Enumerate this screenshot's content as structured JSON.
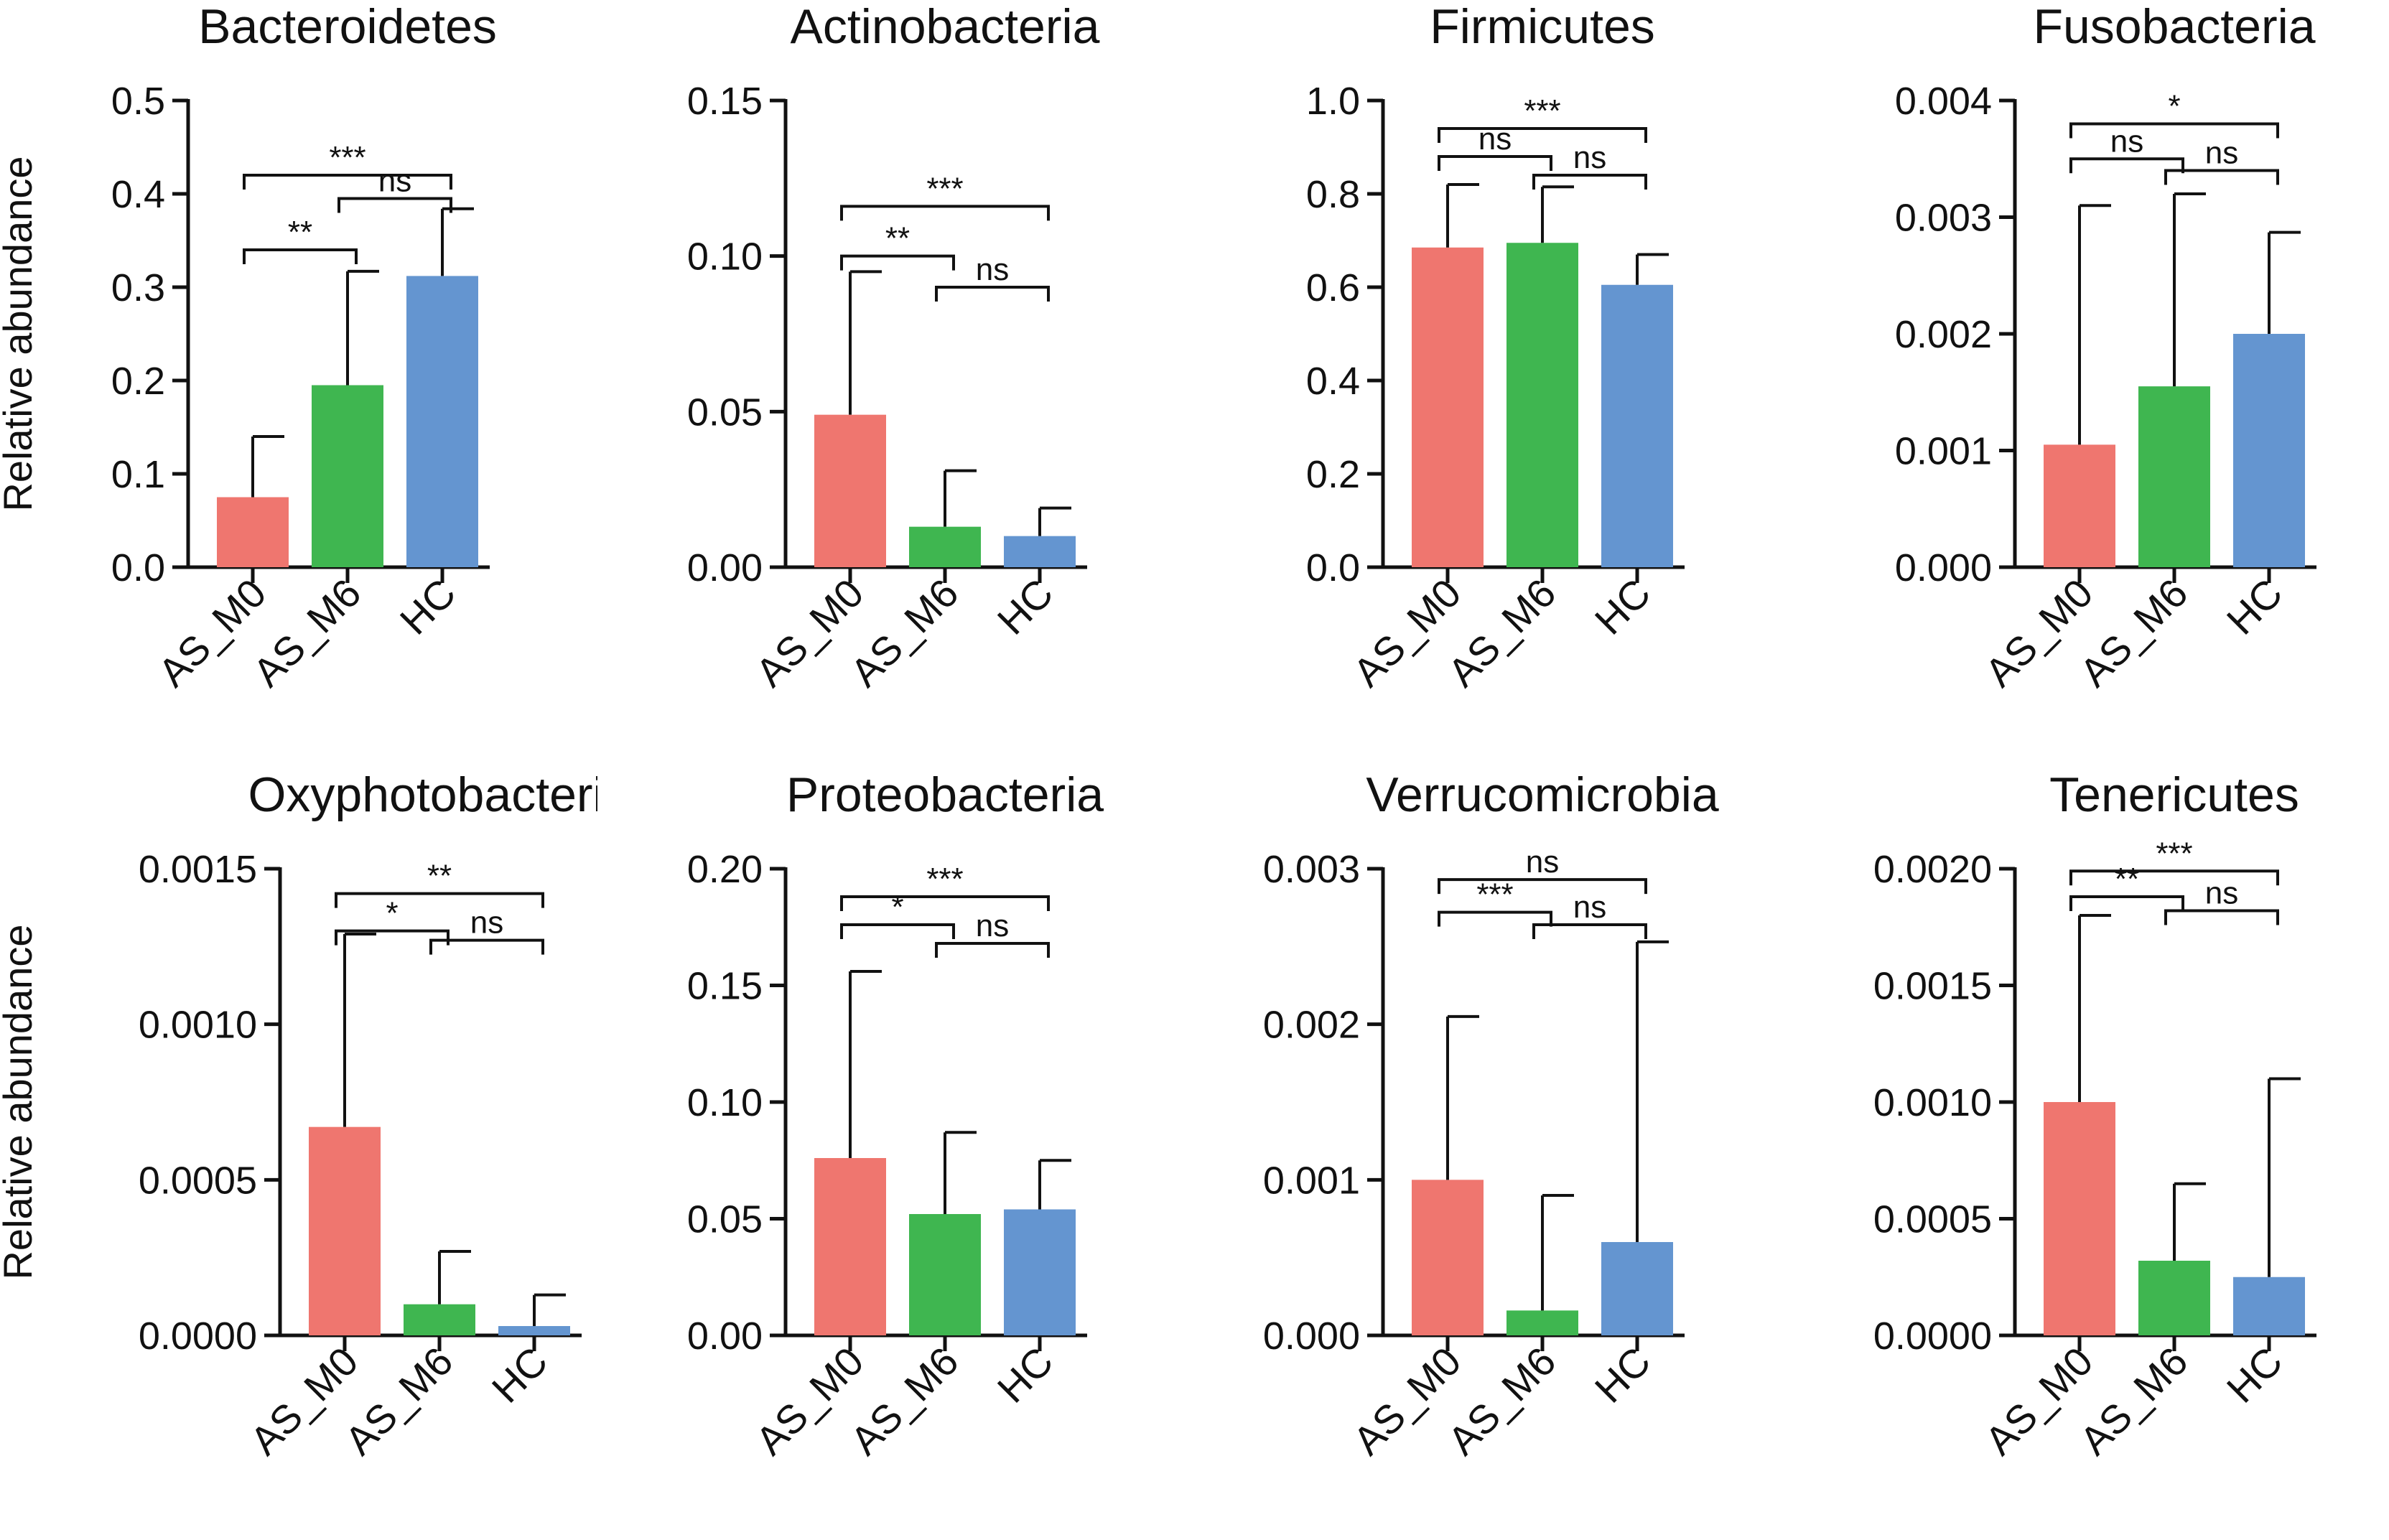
{
  "figure": {
    "ylabel": "Relative abundance",
    "groups": [
      "AS_M0",
      "AS_M6",
      "HC"
    ],
    "colors": {
      "AS_M0": "#ef766f",
      "AS_M6": "#3fb650",
      "HC": "#6495d0",
      "axis": "#111111"
    }
  },
  "chart_data": [
    {
      "type": "bar",
      "title": "Bacteroidetes",
      "ylabel": "Relative abundance",
      "categories": [
        "AS_M0",
        "AS_M6",
        "HC"
      ],
      "values": [
        0.075,
        0.195,
        0.312
      ],
      "errors": [
        0.065,
        0.122,
        0.072
      ],
      "ylim": [
        0,
        0.5
      ],
      "yticks": [
        "0.0",
        "0.1",
        "0.2",
        "0.3",
        "0.4",
        "0.5"
      ],
      "comparisons": [
        {
          "from": 0,
          "to": 2,
          "label": "***",
          "y": 0.42
        },
        {
          "from": 1,
          "to": 2,
          "label": "ns",
          "y": 0.395
        },
        {
          "from": 0,
          "to": 1,
          "label": "**",
          "y": 0.34
        }
      ]
    },
    {
      "type": "bar",
      "title": "Actinobacteria",
      "ylabel": "",
      "categories": [
        "AS_M0",
        "AS_M6",
        "HC"
      ],
      "values": [
        0.049,
        0.013,
        0.01
      ],
      "errors": [
        0.046,
        0.018,
        0.009
      ],
      "ylim": [
        0,
        0.15
      ],
      "yticks": [
        "0.00",
        "0.05",
        "0.10",
        "0.15"
      ],
      "comparisons": [
        {
          "from": 0,
          "to": 2,
          "label": "***",
          "y": 0.116
        },
        {
          "from": 0,
          "to": 1,
          "label": "**",
          "y": 0.1
        },
        {
          "from": 1,
          "to": 2,
          "label": "ns",
          "y": 0.09
        }
      ]
    },
    {
      "type": "bar",
      "title": "Firmicutes",
      "ylabel": "",
      "categories": [
        "AS_M0",
        "AS_M6",
        "HC"
      ],
      "values": [
        0.685,
        0.695,
        0.605
      ],
      "errors": [
        0.135,
        0.12,
        0.065
      ],
      "ylim": [
        0,
        1.0
      ],
      "yticks": [
        "0.0",
        "0.2",
        "0.4",
        "0.6",
        "0.8",
        "1.0"
      ],
      "comparisons": [
        {
          "from": 0,
          "to": 2,
          "label": "***",
          "y": 0.94
        },
        {
          "from": 0,
          "to": 1,
          "label": "ns",
          "y": 0.88
        },
        {
          "from": 1,
          "to": 2,
          "label": "ns",
          "y": 0.84
        }
      ]
    },
    {
      "type": "bar",
      "title": "Fusobacteria",
      "ylabel": "",
      "categories": [
        "AS_M0",
        "AS_M6",
        "HC"
      ],
      "values": [
        0.00105,
        0.00155,
        0.002
      ],
      "errors": [
        0.00205,
        0.00165,
        0.00087
      ],
      "ylim": [
        0,
        0.004
      ],
      "yticks": [
        "0.000",
        "0.001",
        "0.002",
        "0.003",
        "0.004"
      ],
      "comparisons": [
        {
          "from": 0,
          "to": 2,
          "label": "*",
          "y": 0.0038
        },
        {
          "from": 0,
          "to": 1,
          "label": "ns",
          "y": 0.0035
        },
        {
          "from": 1,
          "to": 2,
          "label": "ns",
          "y": 0.0034
        }
      ]
    },
    {
      "type": "bar",
      "title": "Oxyphotobacteria",
      "ylabel": "Relative abundance",
      "categories": [
        "AS_M0",
        "AS_M6",
        "HC"
      ],
      "values": [
        0.00067,
        0.0001,
        3e-05
      ],
      "errors": [
        0.00062,
        0.00017,
        0.0001
      ],
      "ylim": [
        0,
        0.0015
      ],
      "yticks": [
        "0.0000",
        "0.0005",
        "0.0010",
        "0.0015"
      ],
      "comparisons": [
        {
          "from": 0,
          "to": 2,
          "label": "**",
          "y": 0.00142
        },
        {
          "from": 0,
          "to": 1,
          "label": "*",
          "y": 0.0013
        },
        {
          "from": 1,
          "to": 2,
          "label": "ns",
          "y": 0.00127
        }
      ]
    },
    {
      "type": "bar",
      "title": "Proteobacteria",
      "ylabel": "",
      "categories": [
        "AS_M0",
        "AS_M6",
        "HC"
      ],
      "values": [
        0.076,
        0.052,
        0.054
      ],
      "errors": [
        0.08,
        0.035,
        0.021
      ],
      "ylim": [
        0,
        0.2
      ],
      "yticks": [
        "0.00",
        "0.05",
        "0.10",
        "0.15",
        "0.20"
      ],
      "comparisons": [
        {
          "from": 0,
          "to": 2,
          "label": "***",
          "y": 0.188
        },
        {
          "from": 0,
          "to": 1,
          "label": "*",
          "y": 0.176
        },
        {
          "from": 1,
          "to": 2,
          "label": "ns",
          "y": 0.168
        }
      ]
    },
    {
      "type": "bar",
      "title": "Verrucomicrobia",
      "ylabel": "",
      "categories": [
        "AS_M0",
        "AS_M6",
        "HC"
      ],
      "values": [
        0.001,
        0.00016,
        0.0006
      ],
      "errors": [
        0.00105,
        0.00074,
        0.00193
      ],
      "ylim": [
        0,
        0.003
      ],
      "yticks": [
        "0.000",
        "0.001",
        "0.002",
        "0.003"
      ],
      "comparisons": [
        {
          "from": 0,
          "to": 2,
          "label": "ns",
          "y": 0.00293
        },
        {
          "from": 0,
          "to": 1,
          "label": "***",
          "y": 0.00272
        },
        {
          "from": 1,
          "to": 2,
          "label": "ns",
          "y": 0.00264
        }
      ]
    },
    {
      "type": "bar",
      "title": "Tenericutes",
      "ylabel": "",
      "categories": [
        "AS_M0",
        "AS_M6",
        "HC"
      ],
      "values": [
        0.001,
        0.00032,
        0.00025
      ],
      "errors": [
        0.0008,
        0.00033,
        0.00085
      ],
      "ylim": [
        0,
        0.002
      ],
      "yticks": [
        "0.0000",
        "0.0005",
        "0.0010",
        "0.0015",
        "0.0020"
      ],
      "comparisons": [
        {
          "from": 0,
          "to": 2,
          "label": "***",
          "y": 0.00199
        },
        {
          "from": 0,
          "to": 1,
          "label": "**",
          "y": 0.00188
        },
        {
          "from": 1,
          "to": 2,
          "label": "ns",
          "y": 0.00182
        }
      ]
    }
  ]
}
